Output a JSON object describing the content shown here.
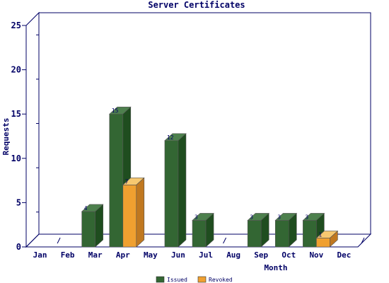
{
  "chart_data": {
    "type": "bar",
    "title": "Server Certificates",
    "xlabel": "Month",
    "ylabel": "Requests",
    "ylim": [
      0,
      25
    ],
    "yticks": [
      "0",
      "5",
      "10",
      "15",
      "20",
      "25"
    ],
    "categories": [
      "Jan",
      "Feb",
      "Mar",
      "Apr",
      "May",
      "Jun",
      "Jul",
      "Aug",
      "Sep",
      "Oct",
      "Nov",
      "Dec"
    ],
    "series": [
      {
        "name": "Issued",
        "values": [
          0,
          0,
          4,
          15,
          0,
          12,
          3,
          0,
          3,
          3,
          3,
          0
        ],
        "labels": [
          "",
          "",
          "4",
          "15",
          "",
          "12",
          "3",
          "",
          "3",
          "3",
          "3",
          ""
        ]
      },
      {
        "name": "Revoked",
        "values": [
          0,
          0,
          0,
          7,
          0,
          0,
          0,
          0,
          0,
          0,
          1,
          0
        ],
        "labels": [
          "",
          "",
          "",
          "7",
          "",
          "",
          "",
          "",
          "",
          "",
          "1",
          ""
        ]
      }
    ],
    "legend_position": "bottom",
    "grid": false
  },
  "colors": {
    "issued_front": "#336633",
    "issued_top": "#4d804d",
    "issued_side": "#1f4d1f",
    "revoked_front": "#f0a030",
    "revoked_top": "#f7c870",
    "revoked_side": "#c07820",
    "axis": "#000066",
    "text": "#000066"
  }
}
